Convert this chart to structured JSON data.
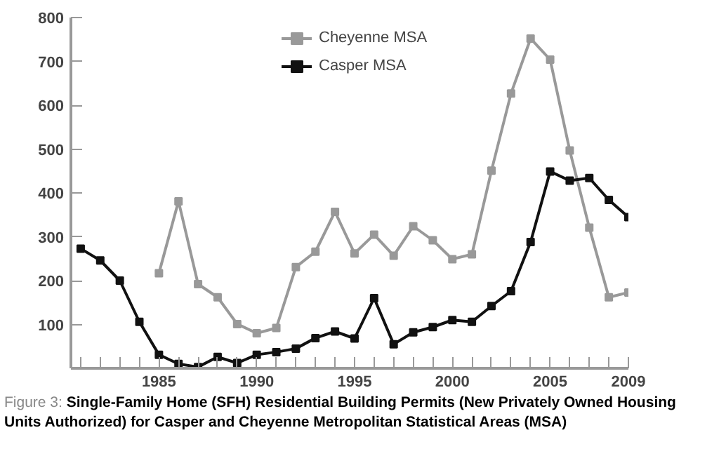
{
  "chart_data": {
    "type": "line",
    "annotations": [
      "Figure 3:",
      "Single-Family Home (SFH) Residential Building Permits (New Privately Owned Housing Units Authorized) for Casper and Cheyenne Metropolitan Statistical Areas (MSA)"
    ],
    "x": [
      1981,
      1982,
      1983,
      1984,
      1985,
      1986,
      1987,
      1988,
      1989,
      1990,
      1991,
      1992,
      1993,
      1994,
      1995,
      1996,
      1997,
      1998,
      1999,
      2000,
      2001,
      2002,
      2003,
      2004,
      2005,
      2006,
      2007,
      2008,
      2009
    ],
    "series": [
      {
        "name": "Cheyenne MSA",
        "color": "#999999",
        "values": [
          null,
          null,
          null,
          null,
          217,
          381,
          192,
          162,
          101,
          80,
          92,
          231,
          266,
          357,
          262,
          305,
          257,
          324,
          292,
          249,
          260,
          451,
          627,
          752,
          704,
          497,
          321,
          162,
          173
        ]
      },
      {
        "name": "Casper MSA",
        "color": "#111111",
        "values": [
          273,
          246,
          200,
          106,
          31,
          10,
          3,
          26,
          12,
          31,
          37,
          45,
          69,
          84,
          68,
          160,
          55,
          82,
          94,
          110,
          106,
          142,
          176,
          288,
          449,
          428,
          434,
          384,
          345
        ]
      }
    ],
    "xlim": [
      1980.5,
      2009
    ],
    "ylim": [
      0,
      800
    ],
    "xticks": [
      {
        "value": 1981,
        "label": null
      },
      {
        "value": 1982,
        "label": null
      },
      {
        "value": 1983,
        "label": null
      },
      {
        "value": 1984,
        "label": null
      },
      1985,
      {
        "value": 1986,
        "label": null
      },
      {
        "value": 1987,
        "label": null
      },
      {
        "value": 1988,
        "label": null
      },
      {
        "value": 1989,
        "label": null
      },
      1990,
      {
        "value": 1991,
        "label": null
      },
      {
        "value": 1992,
        "label": null
      },
      {
        "value": 1993,
        "label": null
      },
      {
        "value": 1994,
        "label": null
      },
      1995,
      {
        "value": 1996,
        "label": null
      },
      {
        "value": 1997,
        "label": null
      },
      {
        "value": 1998,
        "label": null
      },
      {
        "value": 1999,
        "label": null
      },
      2000,
      {
        "value": 2001,
        "label": null
      },
      {
        "value": 2002,
        "label": null
      },
      {
        "value": 2003,
        "label": null
      },
      {
        "value": 2004,
        "label": null
      },
      2005,
      {
        "value": 2006,
        "label": null
      },
      {
        "value": 2007,
        "label": null
      },
      {
        "value": 2008,
        "label": null
      },
      2009
    ],
    "yticks": [
      100,
      200,
      300,
      400,
      500,
      600,
      700,
      800
    ],
    "grid": false,
    "legend": "top",
    "marker": "square",
    "line_style": "solid"
  }
}
